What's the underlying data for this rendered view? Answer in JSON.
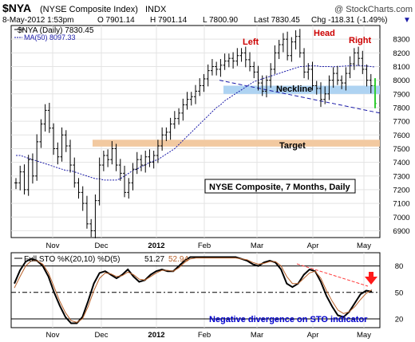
{
  "header": {
    "symbol": "$NYA",
    "name": "(NYSE Composite Index)",
    "exchange": "INDX",
    "credit": "@ StockCharts.com",
    "quote": {
      "date_time": "8-May-2012 1:53pm",
      "open": "O 7901.14",
      "high": "H 7901.14",
      "low": "L 7800.90",
      "last": "Last 7830.45",
      "change": "Chg -118.31 (-1.49%)",
      "change_arrow": "▼"
    }
  },
  "legend": {
    "price_line": "$NYA (Daily) 7830.45",
    "ma_line": "MA(50) 8097.33"
  },
  "annotations": {
    "left": "Left",
    "head": "Head",
    "right": "Right",
    "neckline": "Neckline",
    "target": "Target",
    "chart_caption": "NYSE Composite, 7 Months, Daily",
    "sto_caption": "Negative divergence on STO indicator"
  },
  "sto_legend": {
    "label": "Full STO %K(20,10) %D(5)",
    "k_value": "51.27",
    "d_value": "52.94"
  },
  "colors": {
    "price_bars": "#000000",
    "ma": "#1a1aa8",
    "neckline_band": "#aed3f2",
    "target_band": "#f2c9a0",
    "annotation_red": "#cc0000",
    "caption_blue": "#0000cc",
    "sto_k": "#000000",
    "sto_d": "#b8612a",
    "divergence_line": "#ff3b3b",
    "last_bar": "#33cc33"
  },
  "chart_data": [
    {
      "type": "ohlc",
      "title": "$NYA (NYSE Composite Index) INDX",
      "x_tick_labels": [
        "Nov",
        "Dec",
        "2012",
        "Feb",
        "Mar",
        "Apr",
        "May"
      ],
      "ylim": [
        6850,
        8400
      ],
      "y_ticks": [
        6900,
        7000,
        7100,
        7200,
        7300,
        7400,
        7500,
        7600,
        7700,
        7800,
        7900,
        8000,
        8100,
        8200,
        8300
      ],
      "grid": true,
      "legend_position": "top-left",
      "bands": [
        {
          "label": "Neckline",
          "from_period": "Feb",
          "to_period": "May",
          "low": 7900,
          "high": 7960
        },
        {
          "label": "Target",
          "from_period": "Nov",
          "to_period": "May",
          "low": 7515,
          "high": 7565
        }
      ],
      "neckline": {
        "from": [
          "Feb",
          8000
        ],
        "to": [
          "May",
          7760
        ]
      },
      "price_close": [
        7250,
        7330,
        7200,
        7420,
        7300,
        7550,
        7680,
        7780,
        7650,
        7500,
        7440,
        7600,
        7520,
        7380,
        7250,
        7180,
        7100,
        6950,
        6900,
        7120,
        7380,
        7450,
        7420,
        7500,
        7380,
        7320,
        7180,
        7250,
        7350,
        7420,
        7380,
        7440,
        7400,
        7450,
        7520,
        7600,
        7620,
        7680,
        7720,
        7760,
        7820,
        7860,
        7880,
        7920,
        7960,
        8010,
        8070,
        8100,
        8080,
        8110,
        8140,
        8160,
        8140,
        8180,
        8200,
        8150,
        8100,
        8060,
        7980,
        7920,
        8000,
        8080,
        8200,
        8260,
        8300,
        8180,
        8280,
        8320,
        8200,
        8060,
        8080,
        7960,
        7940,
        7860,
        7900,
        8000,
        8050,
        8000,
        7980,
        8050,
        8120,
        8200,
        8160,
        8080,
        8000,
        7960,
        7830
      ],
      "ma50": [
        7450,
        7450,
        7440,
        7430,
        7420,
        7410,
        7400,
        7390,
        7380,
        7370,
        7360,
        7350,
        7340,
        7340,
        7330,
        7320,
        7310,
        7300,
        7290,
        7280,
        7280,
        7270,
        7270,
        7270,
        7270,
        7280,
        7300,
        7320,
        7340,
        7350,
        7370,
        7380,
        7400,
        7410,
        7420,
        7440,
        7460,
        7480,
        7500,
        7530,
        7560,
        7590,
        7620,
        7650,
        7680,
        7710,
        7740,
        7770,
        7800,
        7820,
        7850,
        7870,
        7890,
        7910,
        7930,
        7950,
        7970,
        7990,
        8000,
        8010,
        8020,
        8030,
        8040,
        8050,
        8060,
        8070,
        8080,
        8090,
        8100,
        8100,
        8105,
        8105,
        8105,
        8100,
        8100,
        8100,
        8098,
        8100,
        8102,
        8104,
        8106,
        8108,
        8108,
        8106,
        8104,
        8100,
        8097
      ]
    },
    {
      "type": "line",
      "title": "Full STO %K(20,10) %D(5)",
      "x_tick_labels": [
        "Nov",
        "Dec",
        "2012",
        "Feb",
        "Mar",
        "Apr",
        "May"
      ],
      "ylim": [
        10,
        95
      ],
      "y_ticks": [
        20,
        50,
        80
      ],
      "series": [
        {
          "name": "%K(20,10)",
          "values": [
            60,
            75,
            85,
            88,
            86,
            80,
            68,
            50,
            35,
            22,
            15,
            15,
            22,
            40,
            60,
            72,
            74,
            70,
            66,
            70,
            76,
            68,
            62,
            64,
            70,
            74,
            76,
            74,
            74,
            80,
            86,
            90,
            90,
            90,
            90,
            90,
            90,
            90,
            90,
            90,
            88,
            86,
            82,
            80,
            84,
            86,
            84,
            76,
            60,
            56,
            60,
            70,
            76,
            74,
            62,
            46,
            34,
            24,
            22,
            28,
            38,
            48,
            52,
            51
          ]
        },
        {
          "name": "%D(5)",
          "values": [
            55,
            68,
            80,
            86,
            86,
            82,
            72,
            56,
            40,
            27,
            18,
            16,
            20,
            34,
            52,
            66,
            72,
            71,
            68,
            69,
            73,
            70,
            65,
            64,
            68,
            72,
            75,
            75,
            74,
            78,
            84,
            88,
            89,
            89,
            89,
            89,
            89,
            89,
            89,
            89,
            88,
            87,
            84,
            82,
            83,
            85,
            85,
            80,
            68,
            60,
            60,
            66,
            72,
            74,
            66,
            52,
            40,
            30,
            26,
            28,
            34,
            42,
            49,
            53
          ]
        }
      ]
    }
  ]
}
